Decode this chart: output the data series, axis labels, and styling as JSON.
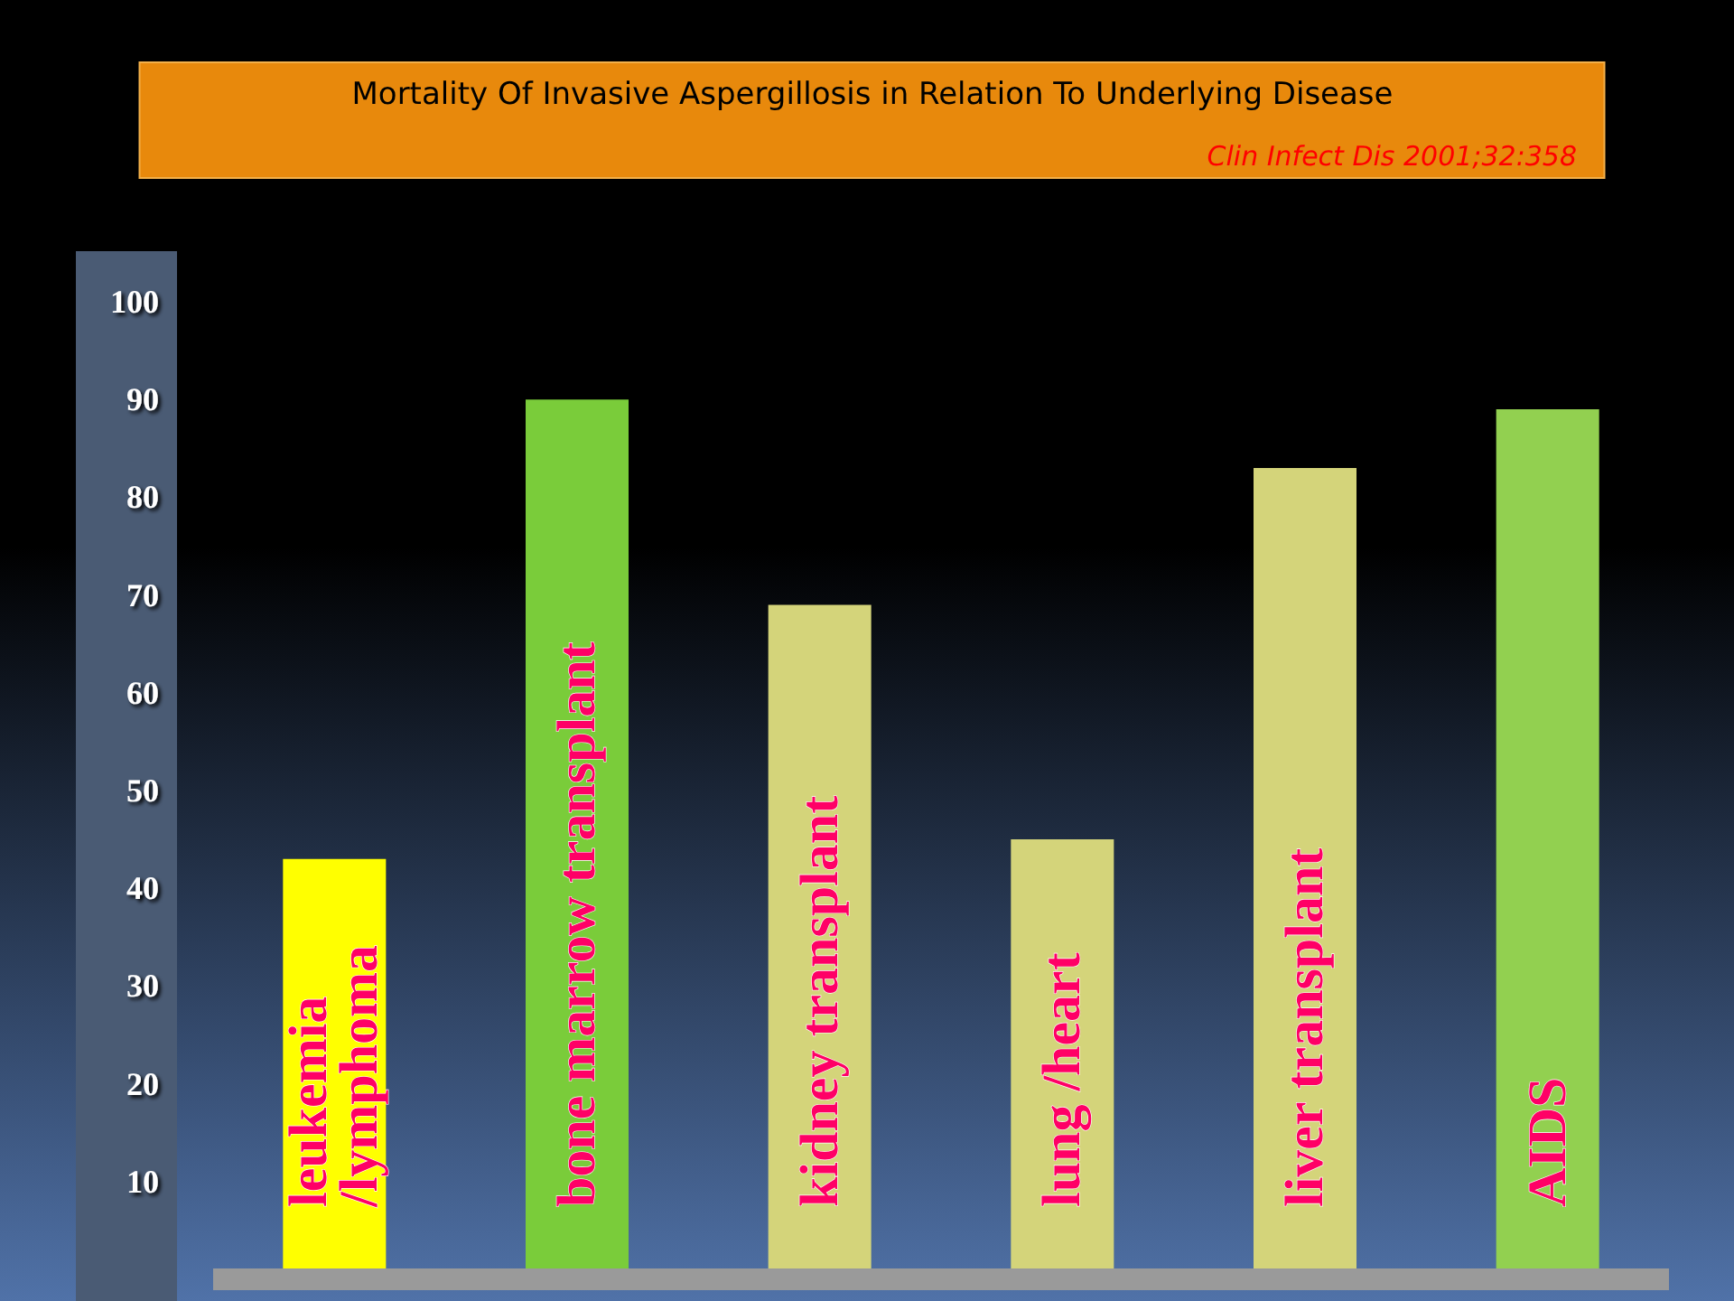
{
  "chart_data": {
    "type": "bar",
    "title": "Mortality Of Invasive Aspergillosis in Relation To Underlying Disease",
    "annotations": [
      "Clin Infect Dis 2001;32:358"
    ],
    "categories": [
      "leukemia\n/lymphoma",
      "bone marrow transplant",
      "kidney transplant",
      "lung /heart",
      "liver transplant",
      "AIDS"
    ],
    "values": [
      43,
      90,
      69,
      45,
      83,
      89
    ],
    "colors": [
      "#ffff00",
      "#7acc3a",
      "#d4d47a",
      "#d4d47a",
      "#d4d47a",
      "#92d050"
    ],
    "ylim": [
      0,
      100
    ],
    "yticks": [
      10,
      20,
      30,
      40,
      50,
      60,
      70,
      80,
      90,
      100
    ]
  }
}
